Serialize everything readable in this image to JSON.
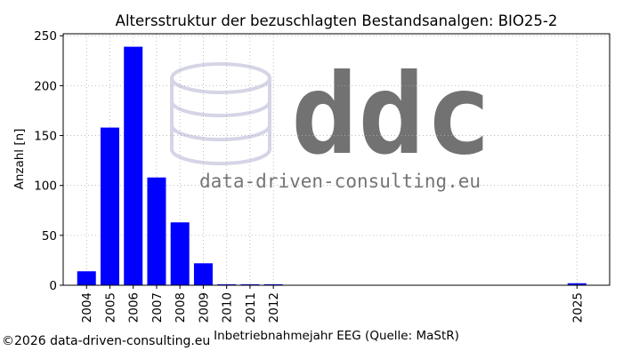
{
  "copyright": "©2026 data-driven-consulting.eu",
  "watermark": {
    "logo_text": "ddc",
    "url_text": "data-driven-consulting.eu",
    "color": "#c8c8e0"
  },
  "colors": {
    "bar": "#0000ff",
    "grid": "#b0b0b0",
    "axis": "#000000"
  },
  "chart_data": {
    "type": "bar",
    "title": "Altersstruktur der bezuschlagten Bestandsanalgen: BIO25-2",
    "xlabel": "Inbetriebnahmejahr EEG (Quelle: MaStR)",
    "ylabel": "Anzahl [n]",
    "x": [
      2004,
      2005,
      2006,
      2007,
      2008,
      2009,
      2010,
      2011,
      2012,
      2025
    ],
    "values": [
      14,
      158,
      239,
      108,
      63,
      22,
      1,
      1,
      1,
      2
    ],
    "xlim": [
      2003.0,
      2026.4
    ],
    "ylim": [
      0,
      252
    ],
    "yticks": [
      0,
      50,
      100,
      150,
      200,
      250
    ],
    "xticks": [
      2004,
      2005,
      2006,
      2007,
      2008,
      2009,
      2010,
      2011,
      2012,
      2025
    ],
    "grid": true
  }
}
